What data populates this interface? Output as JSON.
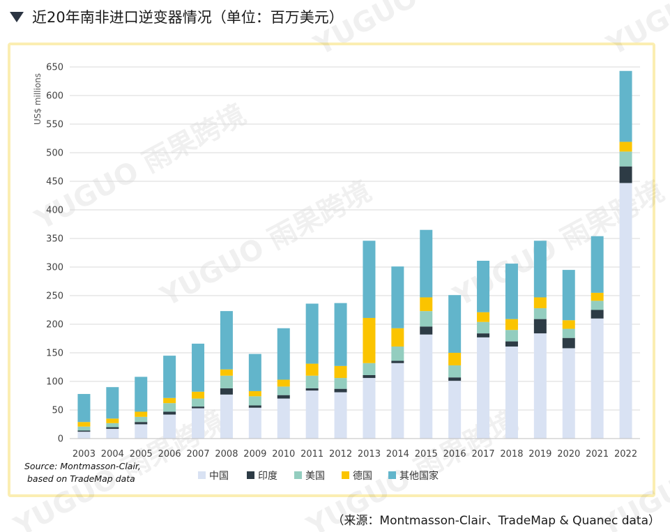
{
  "header": {
    "title": "近20年南非进口逆变器情况（单位：百万美元）",
    "marker_icon": "triangle-down-icon"
  },
  "footer": {
    "source_note_line1": "Source: Montmasson-Clair,",
    "source_note_line2": "based on TradeMap data",
    "source": "（来源：Montmasson-Clair、TradeMap & Quanec data）"
  },
  "watermark": {
    "text": "YUGUO 雨果跨境"
  },
  "colors": {
    "china": "#d9e2f3",
    "india": "#2d3b45",
    "usa": "#93cdbf",
    "germany": "#fbc400",
    "others": "#62b5cb",
    "frame": "#fbeeb2",
    "grid": "#d9d9d9"
  },
  "chart_data": {
    "type": "bar",
    "stacked": true,
    "title": "",
    "xlabel": "",
    "ylabel": "US$ millions",
    "ylim": [
      0,
      650
    ],
    "yticks": [
      0,
      50,
      100,
      150,
      200,
      250,
      300,
      350,
      400,
      450,
      500,
      550,
      600,
      650
    ],
    "grid": true,
    "legend_position": "bottom",
    "categories": [
      "2003",
      "2004",
      "2005",
      "2006",
      "2007",
      "2008",
      "2009",
      "2010",
      "2011",
      "2012",
      "2013",
      "2014",
      "2015",
      "2016",
      "2017",
      "2018",
      "2019",
      "2020",
      "2021",
      "2022"
    ],
    "series": [
      {
        "name": "中国",
        "color_key": "china",
        "values": [
          12,
          17,
          25,
          42,
          53,
          77,
          54,
          70,
          84,
          81,
          106,
          132,
          182,
          101,
          177,
          161,
          184,
          158,
          210,
          447
        ]
      },
      {
        "name": "印度",
        "color_key": "india",
        "values": [
          2,
          3,
          4,
          5,
          3,
          11,
          4,
          6,
          4,
          6,
          5,
          4,
          14,
          6,
          7,
          9,
          25,
          18,
          15,
          29
        ]
      },
      {
        "name": "美国",
        "color_key": "usa",
        "values": [
          7,
          7,
          9,
          15,
          14,
          22,
          16,
          15,
          22,
          19,
          21,
          25,
          27,
          21,
          20,
          20,
          19,
          16,
          16,
          26
        ]
      },
      {
        "name": "德国",
        "color_key": "germany",
        "values": [
          8,
          8,
          9,
          9,
          12,
          11,
          9,
          12,
          21,
          21,
          79,
          32,
          24,
          22,
          17,
          19,
          19,
          15,
          14,
          17
        ]
      },
      {
        "name": "其他国家",
        "color_key": "others",
        "values": [
          49,
          55,
          61,
          74,
          84,
          102,
          65,
          90,
          105,
          110,
          135,
          108,
          118,
          101,
          90,
          97,
          99,
          88,
          99,
          124
        ]
      }
    ]
  }
}
